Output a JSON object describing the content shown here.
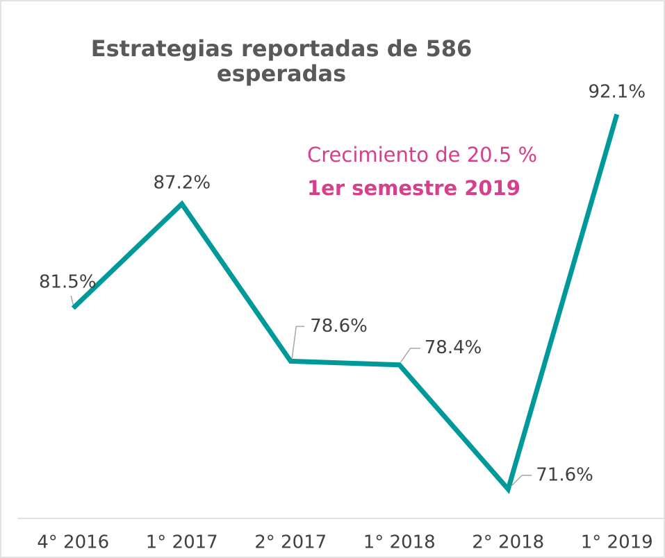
{
  "chart_data": {
    "type": "line",
    "title": "Estrategias reportadas de 586 esperadas",
    "annotations": [
      "Crecimiento de 20.5 %",
      "1er semestre 2019"
    ],
    "categories": [
      "4° 2016",
      "1° 2017",
      "2° 2017",
      "1° 2018",
      "2° 2018",
      "1° 2019"
    ],
    "values": [
      81.5,
      87.2,
      78.6,
      78.4,
      71.6,
      92.1
    ],
    "value_labels": [
      "81.5%",
      "87.2%",
      "78.6%",
      "78.4%",
      "71.6%",
      "92.1%"
    ],
    "color": "#009999",
    "ylim": [
      70,
      96
    ]
  }
}
